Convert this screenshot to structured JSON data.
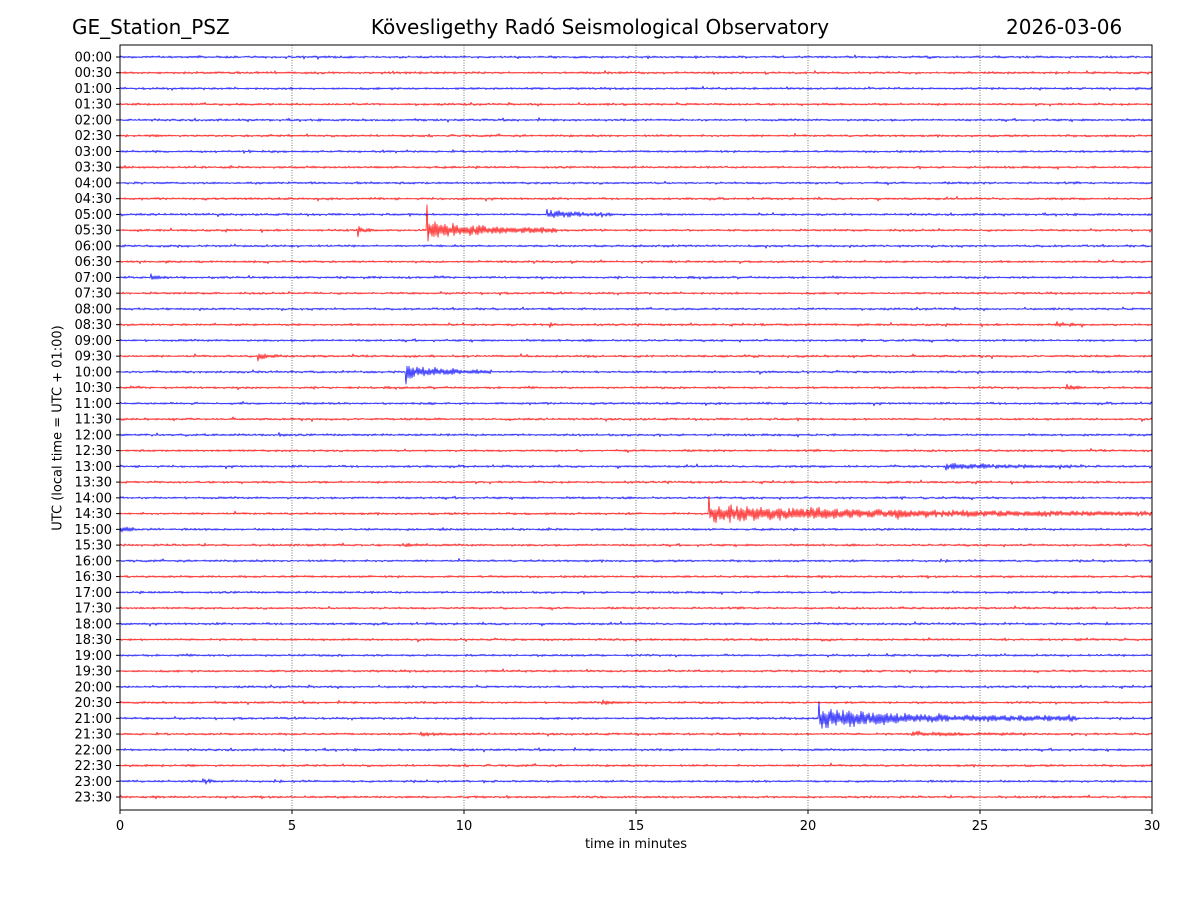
{
  "header": {
    "station": "GE_Station_PSZ",
    "observatory": "Kövesligethy Radó Seismological Observatory",
    "date": "2026-03-06"
  },
  "chart_data": {
    "type": "line",
    "title": "Kövesligethy Radó Seismological Observatory",
    "xlabel": "time in minutes",
    "ylabel": "UTC (local time = UTC + 01:00)",
    "xlim": [
      0,
      30
    ],
    "xticks": [
      0,
      5,
      10,
      15,
      20,
      25,
      30
    ],
    "grid": "vertical dotted lines at x ticks",
    "colors": {
      "even_row": "#0000ff",
      "odd_row": "#ff0000",
      "axis": "#000000",
      "grid": "#555555"
    },
    "rows": [
      "00:00",
      "00:30",
      "01:00",
      "01:30",
      "02:00",
      "02:30",
      "03:00",
      "03:30",
      "04:00",
      "04:30",
      "05:00",
      "05:30",
      "06:00",
      "06:30",
      "07:00",
      "07:30",
      "08:00",
      "08:30",
      "09:00",
      "09:30",
      "10:00",
      "10:30",
      "11:00",
      "11:30",
      "12:00",
      "12:30",
      "13:00",
      "13:30",
      "14:00",
      "14:30",
      "15:00",
      "15:30",
      "16:00",
      "16:30",
      "17:00",
      "17:30",
      "18:00",
      "18:30",
      "19:00",
      "19:30",
      "20:00",
      "20:30",
      "21:00",
      "21:30",
      "22:00",
      "22:30",
      "23:00",
      "23:30"
    ],
    "events": [
      {
        "row": "05:00",
        "start_min": 12.4,
        "duration_min": 2.0,
        "amplitude": 5,
        "spike": 7
      },
      {
        "row": "05:30",
        "start_min": 6.9,
        "duration_min": 0.5,
        "amplitude": 3,
        "spike": 8
      },
      {
        "row": "05:30",
        "start_min": 8.9,
        "duration_min": 3.8,
        "amplitude": 11,
        "spike": 45
      },
      {
        "row": "07:00",
        "start_min": 0.9,
        "duration_min": 0.5,
        "amplitude": 2.5,
        "spike": 4
      },
      {
        "row": "08:30",
        "start_min": 12.5,
        "duration_min": 0.2,
        "amplitude": 2,
        "spike": 4
      },
      {
        "row": "08:30",
        "start_min": 27.2,
        "duration_min": 0.8,
        "amplitude": 2.5,
        "spike": 4
      },
      {
        "row": "09:30",
        "start_min": 4.0,
        "duration_min": 0.7,
        "amplitude": 3,
        "spike": 6
      },
      {
        "row": "10:00",
        "start_min": 8.3,
        "duration_min": 2.5,
        "amplitude": 7,
        "spike": 16
      },
      {
        "row": "10:30",
        "start_min": 27.5,
        "duration_min": 0.6,
        "amplitude": 2.5,
        "spike": 4
      },
      {
        "row": "12:00",
        "start_min": 4.6,
        "duration_min": 0.4,
        "amplitude": 2,
        "spike": 3
      },
      {
        "row": "13:00",
        "start_min": 24.0,
        "duration_min": 4.0,
        "amplitude": 3,
        "spike": 5
      },
      {
        "row": "14:30",
        "start_min": 17.1,
        "duration_min": 12.9,
        "amplitude": 9,
        "spike": 24
      },
      {
        "row": "15:00",
        "start_min": 0.0,
        "duration_min": 0.5,
        "amplitude": 3,
        "spike": 4
      },
      {
        "row": "15:30",
        "start_min": 8.2,
        "duration_min": 0.9,
        "amplitude": 2,
        "spike": 3
      },
      {
        "row": "20:30",
        "start_min": 14.0,
        "duration_min": 0.8,
        "amplitude": 2.5,
        "spike": 3
      },
      {
        "row": "21:00",
        "start_min": 20.3,
        "duration_min": 7.5,
        "amplitude": 10,
        "spike": 30
      },
      {
        "row": "21:30",
        "start_min": 8.7,
        "duration_min": 1.5,
        "amplitude": 2,
        "spike": 3
      },
      {
        "row": "21:30",
        "start_min": 23.0,
        "duration_min": 3.5,
        "amplitude": 2,
        "spike": 3
      },
      {
        "row": "23:00",
        "start_min": 2.4,
        "duration_min": 0.4,
        "amplitude": 2.5,
        "spike": 3
      }
    ],
    "noise_amplitude": 1.2
  }
}
